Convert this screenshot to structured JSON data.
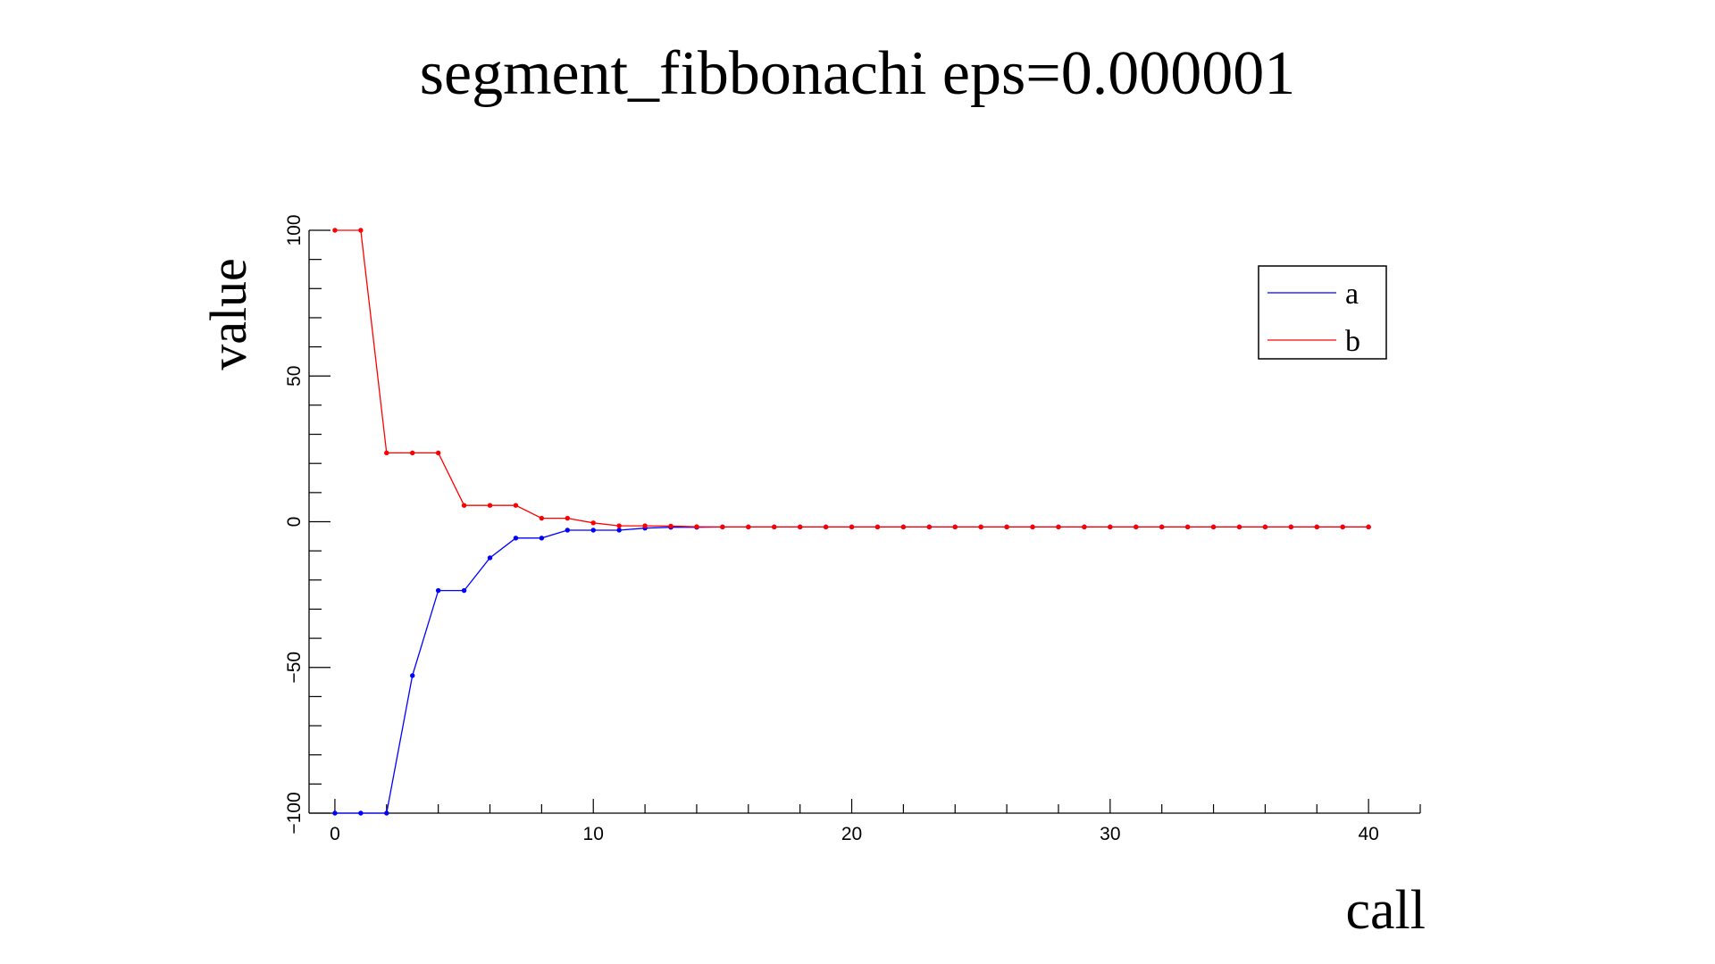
{
  "chart_data": {
    "type": "line",
    "title": "segment_fibbonachi eps=0.000001",
    "xlabel": "call",
    "ylabel": "value",
    "xlim": [
      -1,
      42
    ],
    "ylim": [
      -100,
      100
    ],
    "x_ticks_major": [
      0,
      10,
      20,
      30,
      40
    ],
    "x_ticks_minor_step": 2,
    "y_ticks_major": [
      -100,
      -50,
      0,
      50,
      100
    ],
    "y_ticks_minor_step": 10,
    "grid": false,
    "legend_position": "top-right",
    "series": [
      {
        "name": "a",
        "color": "#0000ff",
        "x": [
          0,
          1,
          2,
          3,
          4,
          5,
          6,
          7,
          8,
          9,
          10,
          11,
          12,
          13,
          14,
          15,
          16,
          17,
          18,
          19,
          20,
          21,
          22,
          23,
          24,
          25,
          26,
          27,
          28,
          29,
          30,
          31,
          32,
          33,
          34,
          35,
          36,
          37,
          38,
          39,
          40
        ],
        "y": [
          -100,
          -100,
          -100,
          -52.8,
          -23.6,
          -23.6,
          -12.4,
          -5.6,
          -5.6,
          -2.9,
          -2.9,
          -2.9,
          -2.2,
          -1.9,
          -1.9,
          -1.8,
          -1.8,
          -1.8,
          -1.8,
          -1.8,
          -1.8,
          -1.8,
          -1.8,
          -1.8,
          -1.8,
          -1.8,
          -1.8,
          -1.8,
          -1.8,
          -1.8,
          -1.8,
          -1.8,
          -1.8,
          -1.8,
          -1.8,
          -1.8,
          -1.8,
          -1.8,
          -1.8,
          -1.8,
          -1.8
        ]
      },
      {
        "name": "b",
        "color": "#ff0000",
        "x": [
          0,
          1,
          2,
          3,
          4,
          5,
          6,
          7,
          8,
          9,
          10,
          11,
          12,
          13,
          14,
          15,
          16,
          17,
          18,
          19,
          20,
          21,
          22,
          23,
          24,
          25,
          26,
          27,
          28,
          29,
          30,
          31,
          32,
          33,
          34,
          35,
          36,
          37,
          38,
          39,
          40
        ],
        "y": [
          100,
          100,
          23.6,
          23.6,
          23.6,
          5.6,
          5.6,
          5.6,
          1.2,
          1.2,
          -0.4,
          -1.4,
          -1.4,
          -1.5,
          -1.7,
          -1.8,
          -1.8,
          -1.8,
          -1.8,
          -1.8,
          -1.8,
          -1.8,
          -1.8,
          -1.8,
          -1.8,
          -1.8,
          -1.8,
          -1.8,
          -1.8,
          -1.8,
          -1.8,
          -1.8,
          -1.8,
          -1.8,
          -1.8,
          -1.8,
          -1.8,
          -1.8,
          -1.8,
          -1.8,
          -1.8
        ]
      }
    ]
  }
}
